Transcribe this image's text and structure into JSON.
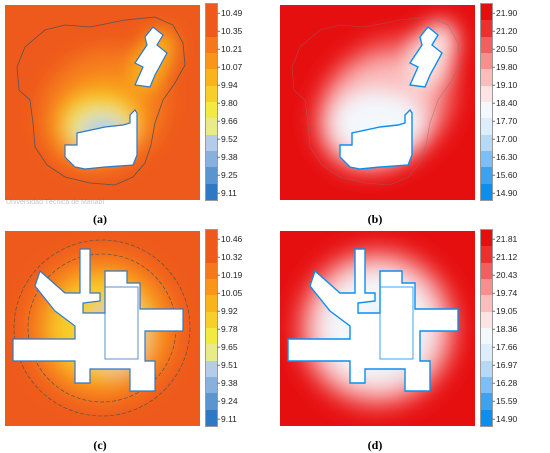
{
  "watermark": "Universidad Técnica de Manabí",
  "chart_data": [
    {
      "type": "heatmap",
      "caption": "(a)",
      "colorbar_ticks": [
        "10.49",
        "10.35",
        "10.21",
        "10.07",
        "9.94",
        "9.80",
        "9.66",
        "9.52",
        "9.38",
        "9.25",
        "9.11"
      ],
      "colormap": [
        "#2f78c4",
        "#5b95cf",
        "#87b1db",
        "#b3cde8",
        "#e9eb8a",
        "#f2ea41",
        "#f7cf2a",
        "#f9b41c",
        "#f9961a",
        "#f5781c",
        "#ee5a1c",
        "#ee5a1c"
      ],
      "value_range": [
        9.11,
        10.49
      ]
    },
    {
      "type": "heatmap",
      "caption": "(b)",
      "colorbar_ticks": [
        "21.90",
        "21.20",
        "20.50",
        "19.80",
        "19.10",
        "18.40",
        "17.70",
        "17.00",
        "16.30",
        "15.60",
        "14.90"
      ],
      "colormap": [
        "#0a8ff0",
        "#3ba3f2",
        "#7dbff5",
        "#b6d9f8",
        "#deedfb",
        "#f3f8fd",
        "#fde3e3",
        "#fbbcbc",
        "#f78f8f",
        "#f35f5f",
        "#ee2f2f",
        "#e60f10"
      ],
      "value_range": [
        14.9,
        21.9
      ]
    },
    {
      "type": "heatmap",
      "caption": "(c)",
      "colorbar_ticks": [
        "10.46",
        "10.32",
        "10.19",
        "10.05",
        "9.92",
        "9.78",
        "9.65",
        "9.51",
        "9.38",
        "9.24",
        "9.11"
      ],
      "colormap": [
        "#2f78c4",
        "#5b95cf",
        "#87b1db",
        "#b3cde8",
        "#e9eb8a",
        "#f2ea41",
        "#f7cf2a",
        "#f9b41c",
        "#f9961a",
        "#f5781c",
        "#ee5a1c",
        "#ee5a1c"
      ],
      "value_range": [
        9.11,
        10.46
      ]
    },
    {
      "type": "heatmap",
      "caption": "(d)",
      "colorbar_ticks": [
        "21.81",
        "21.12",
        "20.43",
        "19.74",
        "19.05",
        "18.36",
        "17.66",
        "16.97",
        "16.28",
        "15.59",
        "14.90"
      ],
      "colormap": [
        "#0a8ff0",
        "#3ba3f2",
        "#7dbff5",
        "#b6d9f8",
        "#deedfb",
        "#f3f8fd",
        "#fde3e3",
        "#fbbcbc",
        "#f78f8f",
        "#f35f5f",
        "#ee2f2f",
        "#e60f10"
      ],
      "value_range": [
        14.9,
        21.81
      ]
    }
  ]
}
